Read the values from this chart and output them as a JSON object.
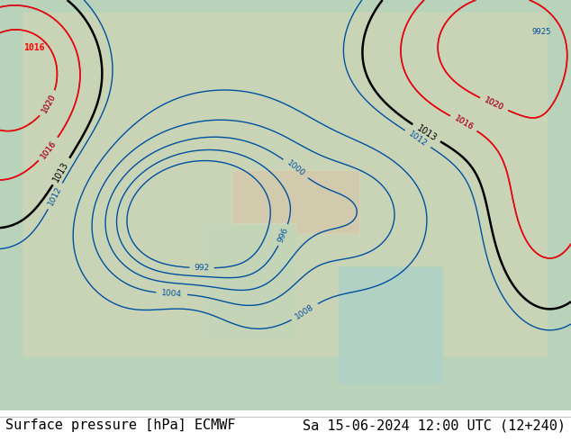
{
  "title_left": "Surface pressure [hPa] ECMWF",
  "title_right": "Sa 15-06-2024 12:00 UTC (12+240)",
  "bg_color": "#ffffff",
  "text_color": "#000000",
  "footer_fontsize": 11,
  "figsize": [
    6.34,
    4.9
  ],
  "dpi": 100
}
